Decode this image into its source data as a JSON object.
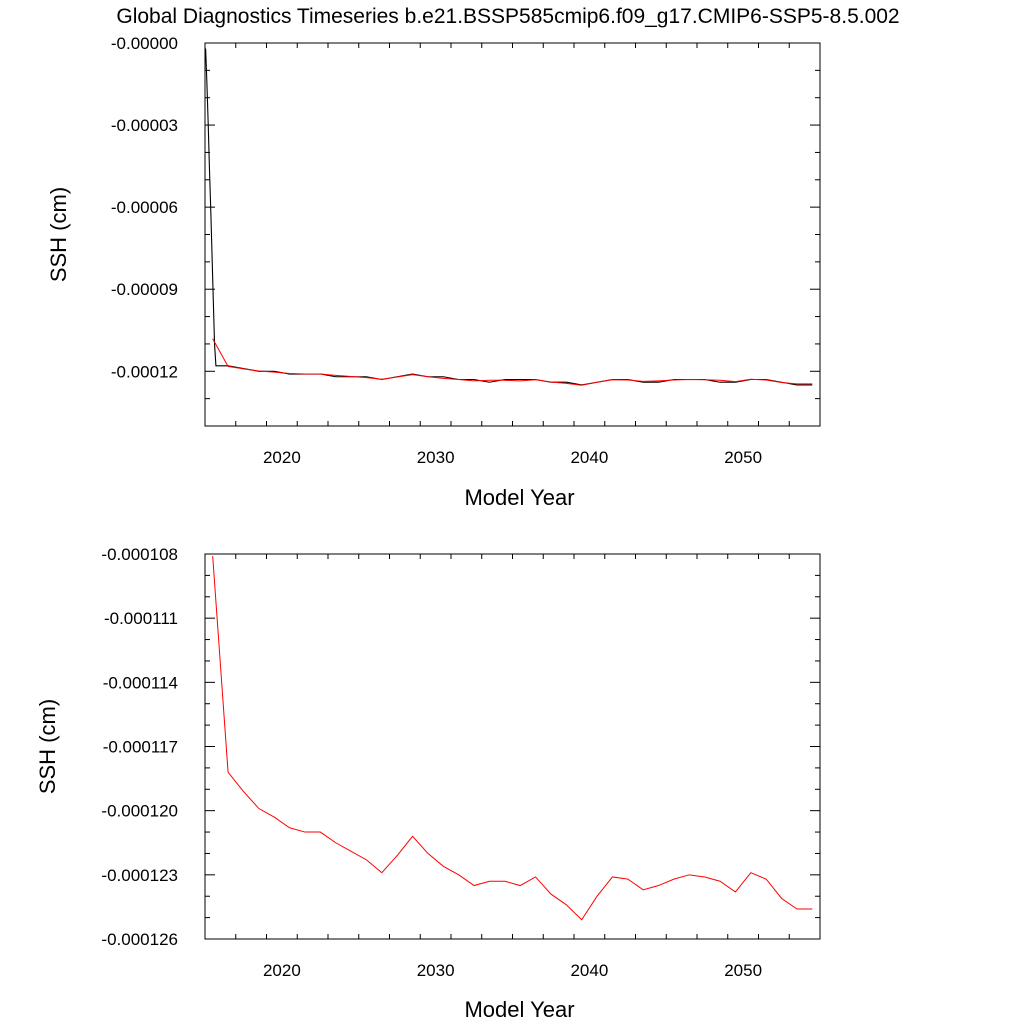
{
  "title": "Global Diagnostics Timeseries b.e21.BSSP585cmip6.f09_g17.CMIP6-SSP5-8.5.002",
  "colors": {
    "monthly": "#000000",
    "annual": "#ff0000",
    "axis": "#000000"
  },
  "chart_data": [
    {
      "type": "line",
      "xlabel": "Model Year",
      "ylabel": "SSH (cm)",
      "xlim": [
        2015,
        2055
      ],
      "ylim": [
        -0.00014,
        0.0
      ],
      "xticks": [
        2020,
        2030,
        2040,
        2050
      ],
      "yticks": [
        0.0,
        -3e-05,
        -6e-05,
        -9e-05,
        -0.00012
      ],
      "ytick_labels": [
        "-0.00000",
        "-0.00003",
        "-0.00006",
        "-0.00009",
        "-0.00012"
      ],
      "grid": false,
      "series": [
        {
          "color": "#000000",
          "x": [
            2015.04,
            2015.12,
            2015.21,
            2015.29,
            2015.38,
            2015.46,
            2015.54,
            2015.62,
            2015.71,
            2015.79,
            2015.88,
            2015.96,
            2016.5,
            2017.5,
            2018.5,
            2019.5,
            2020.5,
            2021.5,
            2022.5,
            2023.5,
            2024.5,
            2025.5,
            2026.5,
            2027.5,
            2028.5,
            2029.5,
            2030.5,
            2031.5,
            2032.5,
            2033.5,
            2034.5,
            2035.5,
            2036.5,
            2037.5,
            2038.5,
            2039.5,
            2040.5,
            2041.5,
            2042.5,
            2043.5,
            2044.5,
            2045.5,
            2046.5,
            2047.5,
            2048.5,
            2049.5,
            2050.5,
            2051.5,
            2052.5,
            2053.5,
            2054.5
          ],
          "y": [
            -2e-06,
            -1.4e-05,
            -3e-05,
            -4.6e-05,
            -6.2e-05,
            -7.8e-05,
            -9.4e-05,
            -0.00011,
            -0.000118,
            -0.000118,
            -0.000118,
            -0.000118,
            -0.000118,
            -0.000119,
            -0.00012,
            -0.00012,
            -0.000121,
            -0.000121,
            -0.000121,
            -0.000122,
            -0.000122,
            -0.000122,
            -0.000123,
            -0.000122,
            -0.000121,
            -0.000122,
            -0.000122,
            -0.000123,
            -0.000123,
            -0.000124,
            -0.000123,
            -0.000123,
            -0.000123,
            -0.000124,
            -0.000124,
            -0.000125,
            -0.000124,
            -0.000123,
            -0.000123,
            -0.000124,
            -0.000124,
            -0.000123,
            -0.000123,
            -0.000123,
            -0.000124,
            -0.000124,
            -0.000123,
            -0.000123,
            -0.000124,
            -0.000125,
            -0.000125
          ]
        },
        {
          "color": "#ff0000",
          "x": [
            2015.5,
            2016.5,
            2017.5,
            2018.5,
            2019.5,
            2020.5,
            2021.5,
            2022.5,
            2023.5,
            2024.5,
            2025.5,
            2026.5,
            2027.5,
            2028.5,
            2029.5,
            2030.5,
            2031.5,
            2032.5,
            2033.5,
            2034.5,
            2035.5,
            2036.5,
            2037.5,
            2038.5,
            2039.5,
            2040.5,
            2041.5,
            2042.5,
            2043.5,
            2044.5,
            2045.5,
            2046.5,
            2047.5,
            2048.5,
            2049.5,
            2050.5,
            2051.5,
            2052.5,
            2053.5,
            2054.5
          ],
          "y": [
            -0.0001081,
            -0.0001182,
            -0.0001191,
            -0.0001199,
            -0.0001203,
            -0.0001208,
            -0.000121,
            -0.000121,
            -0.0001215,
            -0.0001219,
            -0.0001223,
            -0.0001229,
            -0.0001221,
            -0.0001212,
            -0.000122,
            -0.0001226,
            -0.000123,
            -0.0001235,
            -0.0001233,
            -0.0001233,
            -0.0001235,
            -0.0001231,
            -0.0001239,
            -0.0001244,
            -0.0001251,
            -0.000124,
            -0.0001231,
            -0.0001232,
            -0.0001237,
            -0.0001235,
            -0.0001232,
            -0.000123,
            -0.0001231,
            -0.0001233,
            -0.0001238,
            -0.0001229,
            -0.0001232,
            -0.0001241,
            -0.0001246,
            -0.0001246
          ]
        }
      ]
    },
    {
      "type": "line",
      "xlabel": "Model Year",
      "ylabel": "SSH (cm)",
      "xlim": [
        2015,
        2055
      ],
      "ylim": [
        -0.000126,
        -0.000108
      ],
      "xticks": [
        2020,
        2030,
        2040,
        2050
      ],
      "yticks": [
        -0.000108,
        -0.000111,
        -0.000114,
        -0.000117,
        -0.00012,
        -0.000123,
        -0.000126
      ],
      "ytick_labels": [
        "-0.000108",
        "-0.000111",
        "-0.000114",
        "-0.000117",
        "-0.000120",
        "-0.000123",
        "-0.000126"
      ],
      "grid": false,
      "series": [
        {
          "color": "#ff0000",
          "x": [
            2015.5,
            2016.5,
            2017.5,
            2018.5,
            2019.5,
            2020.5,
            2021.5,
            2022.5,
            2023.5,
            2024.5,
            2025.5,
            2026.5,
            2027.5,
            2028.5,
            2029.5,
            2030.5,
            2031.5,
            2032.5,
            2033.5,
            2034.5,
            2035.5,
            2036.5,
            2037.5,
            2038.5,
            2039.5,
            2040.5,
            2041.5,
            2042.5,
            2043.5,
            2044.5,
            2045.5,
            2046.5,
            2047.5,
            2048.5,
            2049.5,
            2050.5,
            2051.5,
            2052.5,
            2053.5,
            2054.5
          ],
          "y": [
            -0.0001081,
            -0.0001182,
            -0.0001191,
            -0.0001199,
            -0.0001203,
            -0.0001208,
            -0.000121,
            -0.000121,
            -0.0001215,
            -0.0001219,
            -0.0001223,
            -0.0001229,
            -0.0001221,
            -0.0001212,
            -0.000122,
            -0.0001226,
            -0.000123,
            -0.0001235,
            -0.0001233,
            -0.0001233,
            -0.0001235,
            -0.0001231,
            -0.0001239,
            -0.0001244,
            -0.0001251,
            -0.000124,
            -0.0001231,
            -0.0001232,
            -0.0001237,
            -0.0001235,
            -0.0001232,
            -0.000123,
            -0.0001231,
            -0.0001233,
            -0.0001238,
            -0.0001229,
            -0.0001232,
            -0.0001241,
            -0.0001246,
            -0.0001246
          ]
        }
      ]
    }
  ]
}
